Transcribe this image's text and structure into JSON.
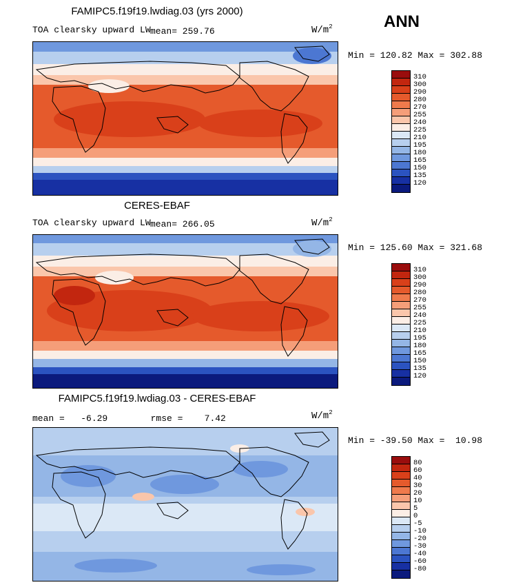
{
  "season": "ANN",
  "units": {
    "base": "W/m",
    "exp": "2"
  },
  "panels": [
    {
      "id": "model",
      "title": "FAMIPC5.f19f19.lwdiag.03 (yrs 2000)",
      "field_label": "TOA clearsky upward LW",
      "stat_line": "mean= 259.76",
      "minmax": "Min = 120.82 Max = 302.88",
      "levels": [
        "310",
        "300",
        "290",
        "280",
        "270",
        "255",
        "240",
        "225",
        "210",
        "195",
        "180",
        "165",
        "150",
        "135",
        "120"
      ],
      "colors": [
        "#9a0d0d",
        "#c2260f",
        "#d9401a",
        "#e55a2c",
        "#ef7a4c",
        "#f59e79",
        "#fac6ab",
        "#fbeee6",
        "#dbe8f6",
        "#b7cfee",
        "#94b6e6",
        "#6f98de",
        "#4c77d2",
        "#2b53c0",
        "#1730a3",
        "#0b1a7d"
      ]
    },
    {
      "id": "obs",
      "title": "CERES-EBAF",
      "field_label": "TOA clearsky upward LW",
      "stat_line": "mean= 266.05",
      "minmax": "Min = 125.60 Max = 321.68",
      "levels": [
        "310",
        "300",
        "290",
        "280",
        "270",
        "255",
        "240",
        "225",
        "210",
        "195",
        "180",
        "165",
        "150",
        "135",
        "120"
      ],
      "colors": [
        "#9a0d0d",
        "#c2260f",
        "#d9401a",
        "#e55a2c",
        "#ef7a4c",
        "#f59e79",
        "#fac6ab",
        "#fbeee6",
        "#dbe8f6",
        "#b7cfee",
        "#94b6e6",
        "#6f98de",
        "#4c77d2",
        "#2b53c0",
        "#1730a3",
        "#0b1a7d"
      ]
    },
    {
      "id": "diff",
      "title": "FAMIPC5.f19f19.lwdiag.03 - CERES-EBAF",
      "stat_line": "mean =   -6.29        rmse =    7.42",
      "minmax": "Min = -39.50 Max =  10.98",
      "levels": [
        "80",
        "60",
        "40",
        "30",
        "20",
        "10",
        "5",
        "0",
        "-5",
        "-10",
        "-20",
        "-30",
        "-40",
        "-60",
        "-80"
      ],
      "colors": [
        "#9a0d0d",
        "#c2260f",
        "#d9401a",
        "#e55a2c",
        "#ef7a4c",
        "#f59e79",
        "#fac6ab",
        "#fbeee6",
        "#dbe8f6",
        "#b7cfee",
        "#94b6e6",
        "#6f98de",
        "#4c77d2",
        "#2b53c0",
        "#1730a3",
        "#0b1a7d"
      ]
    }
  ]
}
